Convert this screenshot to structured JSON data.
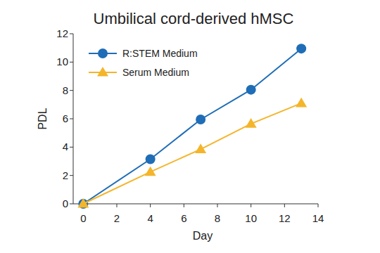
{
  "chart_data": {
    "type": "line",
    "title": "Umbilical cord-derived hMSC",
    "x_label": "Day",
    "y_label": "PDL",
    "x": [
      0,
      4,
      7,
      10,
      13
    ],
    "series": [
      {
        "name": "R:STEM Medium",
        "color": "#1f6db6",
        "marker": "circle",
        "values": [
          0,
          3.15,
          5.95,
          8.05,
          10.95
        ]
      },
      {
        "name": "Serum Medium",
        "color": "#f4b52b",
        "marker": "triangle",
        "values": [
          0,
          2.25,
          3.85,
          5.65,
          7.1
        ]
      }
    ],
    "xlim": [
      -0.6,
      14
    ],
    "xticks": [
      0,
      2,
      4,
      6,
      8,
      10,
      12,
      14
    ],
    "ylim": [
      0,
      12
    ],
    "yticks": [
      0,
      2,
      4,
      6,
      8,
      10,
      12
    ],
    "grid": false,
    "legend": "upper left"
  }
}
